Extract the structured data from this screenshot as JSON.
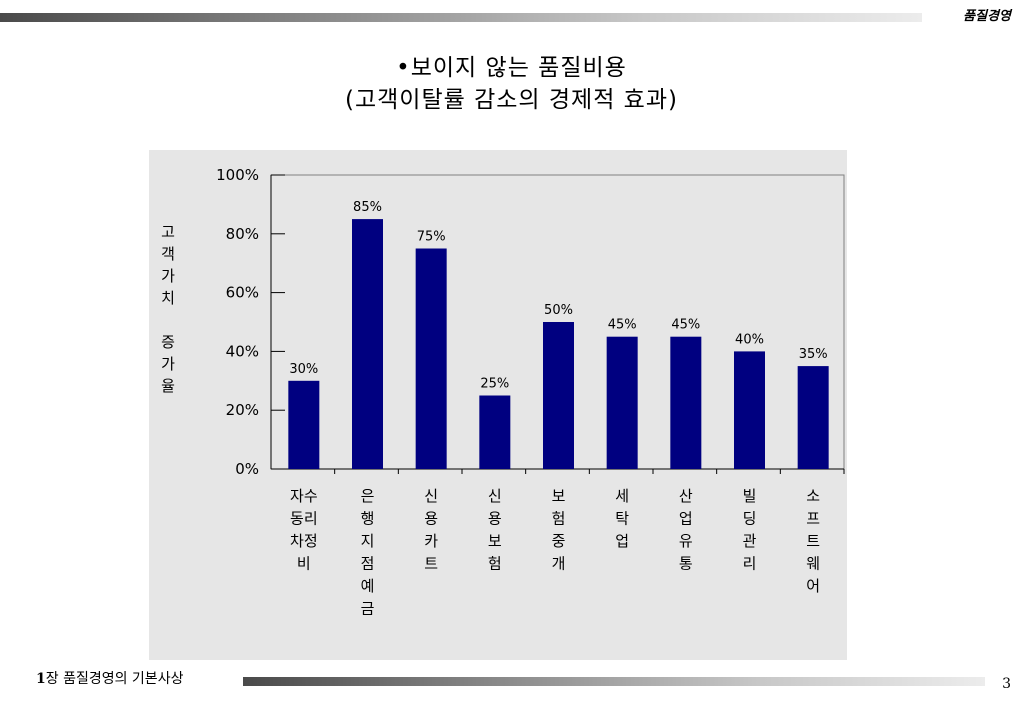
{
  "header": {
    "text": "품질경영"
  },
  "title": {
    "line1": "•보이지 않는 품질비용",
    "line2": "(고객이탈률 감소의 경제적 효과)"
  },
  "footer": {
    "chapter_num": "1",
    "chapter_text": "장 품질경영의 기본사상",
    "page_number": "3"
  },
  "colors": {
    "bar": "#000080",
    "panel": "#e6e6e6",
    "plot_bg": "#e6e6e6"
  },
  "chart_data": {
    "type": "bar",
    "ylabel": "고객가치 증가율",
    "ylabel_lines": [
      "고",
      "객",
      "가",
      "치",
      "",
      "증",
      "가",
      "율"
    ],
    "ylim": [
      0,
      100
    ],
    "yticks": [
      "0%",
      "20%",
      "40%",
      "60%",
      "80%",
      "100%"
    ],
    "ytick_values": [
      0,
      20,
      40,
      60,
      80,
      100
    ],
    "categories": [
      "자동차정비",
      "은행지점예금",
      "신용카트",
      "신용보험",
      "보험중개",
      "세탁업",
      "산업유통",
      "빌딩관리",
      "소프트웨어"
    ],
    "category_lines": [
      [
        "자수",
        "동리",
        "차정",
        "비"
      ],
      [
        "은",
        "행",
        "지",
        "점",
        "예",
        "금"
      ],
      [
        "신",
        "용",
        "카",
        "트"
      ],
      [
        "신",
        "용",
        "보",
        "험"
      ],
      [
        "보",
        "험",
        "중",
        "개"
      ],
      [
        "세",
        "탁",
        "업"
      ],
      [
        "산",
        "업",
        "유",
        "통"
      ],
      [
        "빌",
        "딩",
        "관",
        "리"
      ],
      [
        "소",
        "프",
        "트",
        "웨",
        "어"
      ]
    ],
    "values": [
      30,
      85,
      75,
      25,
      50,
      45,
      45,
      40,
      35
    ],
    "data_labels": [
      "30%",
      "85%",
      "75%",
      "25%",
      "50%",
      "45%",
      "45%",
      "40%",
      "35%"
    ],
    "grid": false,
    "legend": "none"
  }
}
